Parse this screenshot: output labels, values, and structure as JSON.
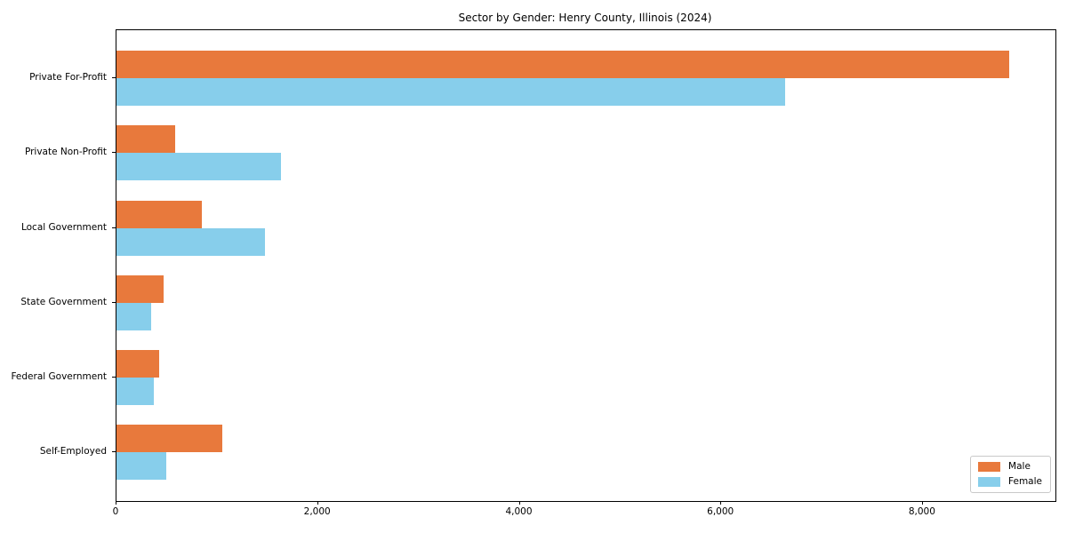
{
  "title": "Sector by Gender: Henry County, Illinois (2024)",
  "legend": {
    "items": [
      {
        "label": "Male",
        "color": "#e8793c"
      },
      {
        "label": "Female",
        "color": "#87ceeb"
      }
    ]
  },
  "chart_data": {
    "type": "bar",
    "orientation": "horizontal",
    "title": "Sector by Gender: Henry County, Illinois (2024)",
    "xlabel": "",
    "ylabel": "",
    "categories": [
      "Private For-Profit",
      "Private Non-Profit",
      "Local Government",
      "State Government",
      "Federal Government",
      "Self-Employed"
    ],
    "series": [
      {
        "name": "Male",
        "color": "#e8793c",
        "values": [
          8860,
          580,
          845,
          465,
          425,
          1050
        ]
      },
      {
        "name": "Female",
        "color": "#87ceeb",
        "values": [
          6630,
          1630,
          1470,
          345,
          370,
          495
        ]
      }
    ],
    "xlim": [
      0,
      9315
    ],
    "xticks": [
      0,
      2000,
      4000,
      6000,
      8000
    ],
    "xtick_labels": [
      "0",
      "2,000",
      "4,000",
      "6,000",
      "8,000"
    ],
    "grid": false,
    "legend_position": "lower right"
  }
}
